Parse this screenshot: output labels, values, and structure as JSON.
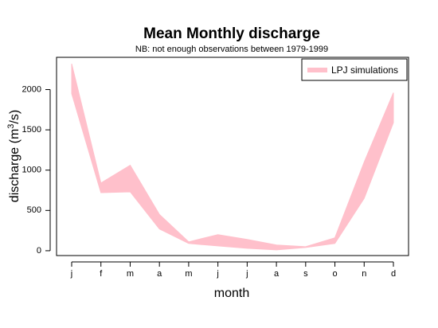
{
  "chart_data": {
    "type": "area",
    "title": "Mean Monthly discharge",
    "subtitle": "NB: not enough observations between 1979-1999",
    "xlabel": "month",
    "ylabel_main": "discharge (m",
    "ylabel_sup": "3",
    "ylabel_end": "/s)",
    "categories": [
      "j",
      "f",
      "m",
      "a",
      "m",
      "j",
      "j",
      "a",
      "s",
      "o",
      "n",
      "d"
    ],
    "ylim": [
      -60,
      2400
    ],
    "yticks": [
      0,
      500,
      1000,
      1500,
      2000
    ],
    "series": [
      {
        "name": "LPJ simulations",
        "color": "#ffc0cb",
        "upper": [
          2320,
          840,
          1060,
          450,
          110,
          200,
          140,
          70,
          50,
          160,
          1100,
          1960
        ],
        "lower": [
          1950,
          720,
          730,
          270,
          90,
          60,
          30,
          10,
          40,
          90,
          650,
          1590
        ]
      }
    ],
    "legend_position": "top-right",
    "grid": false
  }
}
